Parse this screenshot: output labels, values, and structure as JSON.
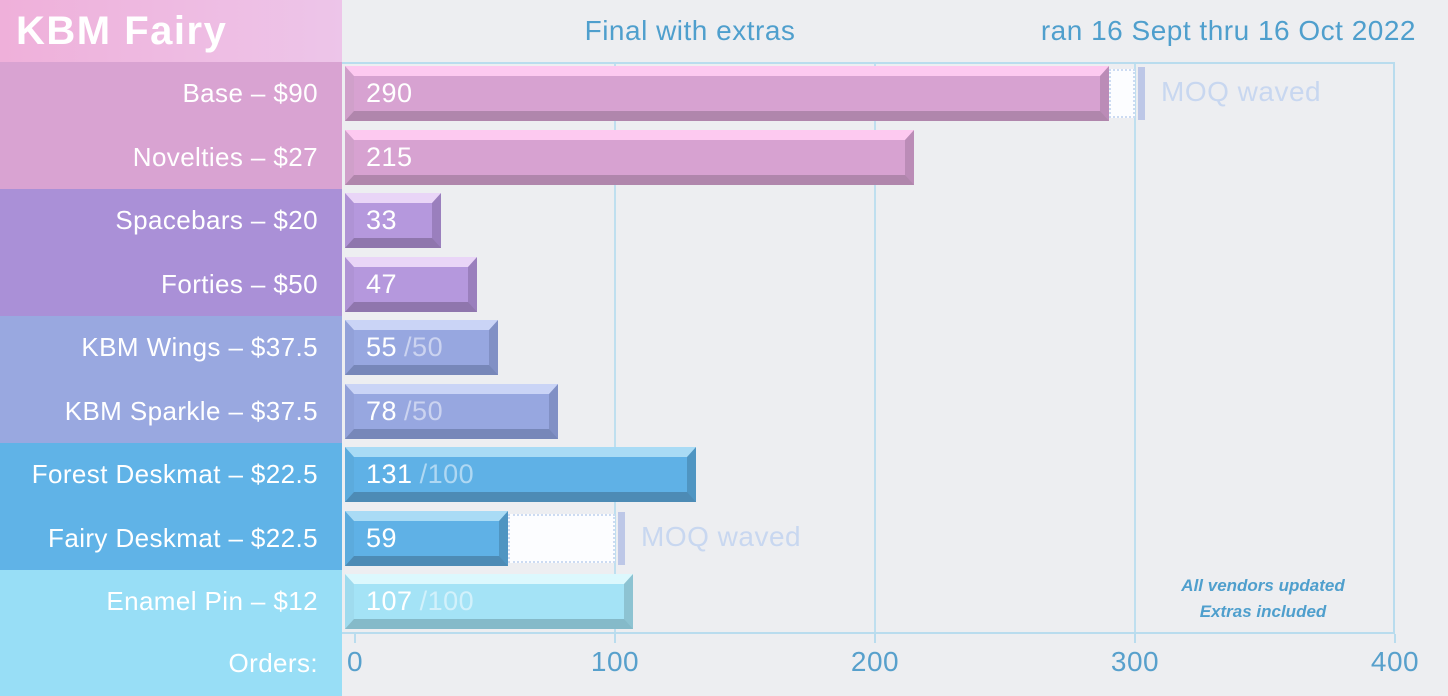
{
  "chart_data": {
    "type": "bar",
    "title": "KBM Fairy",
    "subtitle": "Final with extras",
    "date_note": "ran 16 Sept thru 16 Oct 2022",
    "xlabel": "Orders:",
    "xlim": [
      0,
      400
    ],
    "xticks": [
      "0",
      "100",
      "200",
      "300",
      "400"
    ],
    "grid": "vertical gridlines on, light blue",
    "legend_position": "none",
    "moq_label": "MOQ waved",
    "footnote_lines": [
      "All vendors updated",
      "Extras included"
    ],
    "rows": [
      {
        "label": "Base – $90",
        "value": 290,
        "suffix": "",
        "group": "pink",
        "moq_waved_to": 300
      },
      {
        "label": "Novelties – $27",
        "value": 215,
        "suffix": "",
        "group": "pink",
        "moq_waved_to": null
      },
      {
        "label": "Spacebars – $20",
        "value": 33,
        "suffix": "",
        "group": "purple",
        "moq_waved_to": null
      },
      {
        "label": "Forties – $50",
        "value": 47,
        "suffix": "",
        "group": "purple",
        "moq_waved_to": null
      },
      {
        "label": "KBM Wings – $37.5",
        "value": 55,
        "suffix": "/50",
        "group": "periwinkle",
        "moq_waved_to": null
      },
      {
        "label": "KBM Sparkle – $37.5",
        "value": 78,
        "suffix": "/50",
        "group": "periwinkle",
        "moq_waved_to": null
      },
      {
        "label": "Forest Deskmat – $22.5",
        "value": 131,
        "suffix": "/100",
        "group": "blue",
        "moq_waved_to": null
      },
      {
        "label": "Fairy Deskmat – $22.5",
        "value": 59,
        "suffix": "",
        "group": "blue",
        "moq_waved_to": 100
      },
      {
        "label": "Enamel Pin – $12",
        "value": 107,
        "suffix": "/100",
        "group": "cyan",
        "moq_waved_to": null
      }
    ],
    "colors": {
      "background": "#edeef1",
      "header_text": "#4f9fcd",
      "axis_text": "#57a0cc",
      "gridline": "#bfdfef",
      "plot_border": "#b9dcee",
      "moq_text": "#c8d7f0",
      "title_bg_left": "#efb0da",
      "title_bg_right": "#edc5e9",
      "sidebar": {
        "pink": "#d9a3d2",
        "purple": "#aa90d7",
        "periwinkle": "#99a8e0",
        "blue": "#60b3e7",
        "cyan": "#98def6"
      },
      "bars": {
        "pink": {
          "body": "#d7a2d1",
          "top": "#fdc9f0",
          "left": "#d0a0ca",
          "right": "#bb8cb7",
          "bottom": "#b086ac"
        },
        "purple": {
          "body": "#b598dd",
          "top": "#e9d5f7",
          "left": "#af93d5",
          "right": "#9a7fbd",
          "bottom": "#8f76ad"
        },
        "periwinkle": {
          "body": "#97a7e0",
          "top": "#cad4f6",
          "left": "#92a1d9",
          "right": "#8190c5",
          "bottom": "#7787b9"
        },
        "blue": {
          "body": "#5fb1e6",
          "top": "#a9dbf5",
          "left": "#5cabdd",
          "right": "#4f95c2",
          "bottom": "#4d8bb5"
        },
        "cyan": {
          "body": "#a4e3f6",
          "top": "#dcf8fd",
          "left": "#9fdbee",
          "right": "#8dc3d2",
          "bottom": "#85bac9"
        }
      }
    }
  }
}
